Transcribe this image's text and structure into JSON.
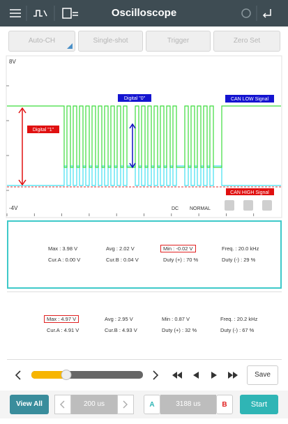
{
  "header": {
    "title": "Oscilloscope"
  },
  "toolbar": {
    "buttons": [
      "Auto-CH",
      "Single-shot",
      "Trigger",
      "Zero Set"
    ]
  },
  "scope": {
    "y_top_label": "8V",
    "y_bottom_label": "-4V",
    "coupling": "DC",
    "mode": "NORMAL",
    "annotations": {
      "digital_0": "Digital \"0\"",
      "digital_1": "Digital \"1\"",
      "can_low": "CAN LOW Signal",
      "can_high": "CAN HIGH Signal"
    }
  },
  "panels": [
    {
      "rows": [
        [
          "Max : 3.98 V",
          "Avg : 2.02 V",
          "Min : -0.02 V",
          "Freq. : 20.0 kHz"
        ],
        [
          "Cur.A : 0.00 V",
          "Cur.B : 0.04 V",
          "Duty (+) : 70 %",
          "Duty (-) : 29 %"
        ]
      ]
    },
    {
      "rows": [
        [
          "Max : 4.97 V",
          "Avg : 2.95 V",
          "Min : 0.87 V",
          "Freq. : 20.2 kHz"
        ],
        [
          "Cur.A : 4.91 V",
          "Cur.B : 4.93 V",
          "Duty (+) : 32 %",
          "Duty (-) : 67 %"
        ]
      ]
    }
  ],
  "controls": {
    "save": "Save"
  },
  "bottom_bar": {
    "view_all": "View All",
    "time_div": "200 us",
    "cursor_a": "A",
    "cursor_delta": "3188 us",
    "cursor_b": "B",
    "start": "Start"
  }
}
